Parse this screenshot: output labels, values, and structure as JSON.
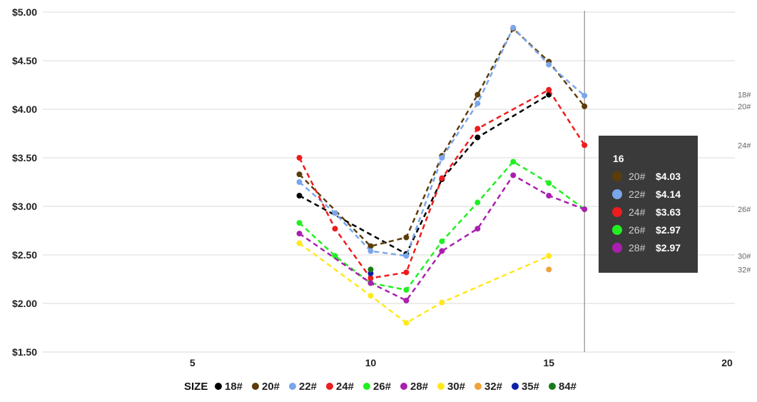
{
  "chart_data": {
    "type": "line",
    "ylim": [
      1.5,
      5.0
    ],
    "xlim": [
      0,
      20
    ],
    "yticks": [
      1.5,
      2.0,
      2.5,
      3.0,
      3.5,
      4.0,
      4.5,
      5.0
    ],
    "ytick_labels": [
      "$1.50",
      "$2.00",
      "$2.50",
      "$3.00",
      "$3.50",
      "$4.00",
      "$4.50",
      "$5.00"
    ],
    "xticks": [
      5,
      10,
      15,
      20
    ],
    "xtick_labels": [
      "5",
      "10",
      "15",
      "20"
    ],
    "grid": true,
    "legend_position": "bottom",
    "legend_title": "SIZE",
    "hover_x": 16,
    "series": [
      {
        "name": "18#",
        "color": "#000000",
        "x": [
          8,
          11,
          12,
          13,
          15
        ],
        "y": [
          3.11,
          2.51,
          3.28,
          3.71,
          4.15
        ],
        "end_label": "18#"
      },
      {
        "name": "20#",
        "color": "#5c3d0a",
        "x": [
          8,
          10,
          11,
          12,
          13,
          14,
          15,
          16
        ],
        "y": [
          3.33,
          2.59,
          2.68,
          3.52,
          4.15,
          4.83,
          4.49,
          4.03
        ],
        "end_label": "20#"
      },
      {
        "name": "22#",
        "color": "#7aa6ea",
        "x": [
          8,
          9,
          10,
          11,
          12,
          13,
          14,
          15,
          16
        ],
        "y": [
          3.25,
          2.93,
          2.54,
          2.49,
          3.5,
          4.06,
          4.84,
          4.46,
          4.14
        ],
        "end_label": ""
      },
      {
        "name": "24#",
        "color": "#ee1c1c",
        "x": [
          8,
          9,
          10,
          11,
          12,
          13,
          15,
          16
        ],
        "y": [
          3.5,
          2.77,
          2.26,
          2.32,
          3.29,
          3.8,
          4.2,
          3.63
        ],
        "end_label": "24#"
      },
      {
        "name": "26#",
        "color": "#22ee22",
        "x": [
          8,
          9,
          10,
          11,
          12,
          13,
          14,
          15,
          16
        ],
        "y": [
          2.83,
          2.49,
          2.21,
          2.14,
          2.64,
          3.04,
          3.46,
          3.24,
          2.97
        ],
        "end_label": "26#"
      },
      {
        "name": "28#",
        "color": "#aa1fb0",
        "x": [
          8,
          10,
          11,
          12,
          13,
          14,
          15,
          16
        ],
        "y": [
          2.72,
          2.21,
          2.03,
          2.54,
          2.77,
          3.32,
          3.11,
          2.97
        ],
        "end_label": ""
      },
      {
        "name": "30#",
        "color": "#ffe81a",
        "x": [
          8,
          10,
          11,
          12,
          15
        ],
        "y": [
          2.62,
          2.08,
          1.8,
          2.01,
          2.49
        ],
        "end_label": "30#"
      },
      {
        "name": "32#",
        "color": "#f2a23a",
        "x": [
          15
        ],
        "y": [
          2.35
        ],
        "end_label": "32#"
      },
      {
        "name": "35#",
        "color": "#0f1fa8",
        "x": [
          10
        ],
        "y": [
          2.31
        ],
        "end_label": ""
      },
      {
        "name": "84#",
        "color": "#1a7a1a",
        "x": [
          10
        ],
        "y": [
          2.35
        ],
        "end_label": ""
      }
    ],
    "tooltip": {
      "title": "16",
      "rows": [
        {
          "name": "20#",
          "value": "$4.03",
          "color": "#5c3d0a"
        },
        {
          "name": "22#",
          "value": "$4.14",
          "color": "#7aa6ea"
        },
        {
          "name": "24#",
          "value": "$3.63",
          "color": "#ee1c1c"
        },
        {
          "name": "26#",
          "value": "$2.97",
          "color": "#22ee22"
        },
        {
          "name": "28#",
          "value": "$2.97",
          "color": "#aa1fb0"
        }
      ]
    }
  }
}
